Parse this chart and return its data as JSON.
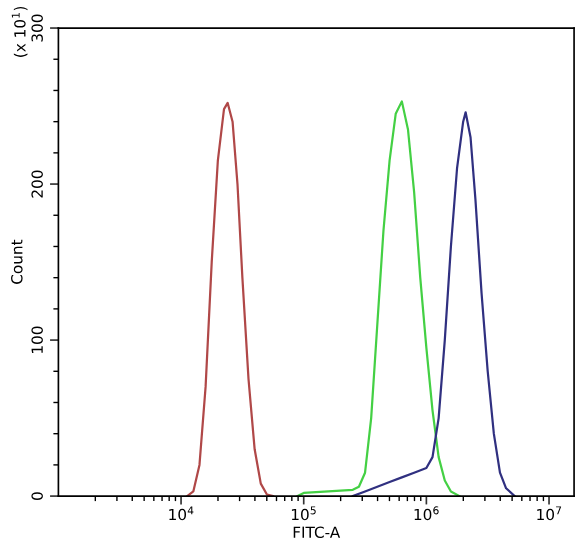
{
  "chart_data": {
    "type": "line",
    "xlabel": "FITC-A",
    "ylabel": "Count",
    "annotations": [
      "(x 10$^{1}$)"
    ],
    "log": "x",
    "grid": false,
    "marker": "none",
    "line_style": "solid",
    "xlim": [
      1000,
      16000000
    ],
    "xticks": [
      {
        "value": 10000,
        "label": "10$^{4}$"
      },
      {
        "value": 100000,
        "label": "10$^{5}$"
      },
      {
        "value": 1000000,
        "label": "10$^{6}$"
      },
      {
        "value": 10000000,
        "label": "10$^{7}$"
      }
    ],
    "ylim": [
      0,
      300
    ],
    "yticks": [
      0,
      100,
      200,
      300
    ],
    "series": [
      {
        "color": "#b04848",
        "x": [
          11220,
          12590,
          14130,
          15850,
          17780,
          19950,
          22390,
          23990,
          26300,
          28840,
          31620,
          35480,
          39810,
          44670,
          50120,
          56230
        ],
        "values": [
          0,
          3,
          20,
          70,
          150,
          215,
          248,
          252,
          240,
          200,
          140,
          75,
          30,
          8,
          1,
          0
        ]
      },
      {
        "color": "#44d044",
        "x": [
          89130,
          100000,
          158500,
          251200,
          281800,
          316200,
          354800,
          398100,
          446700,
          501200,
          562300,
          631000,
          707900,
          794300,
          891300,
          1000000,
          1122000,
          1259000,
          1413000,
          1585000,
          1862000
        ],
        "values": [
          0,
          2,
          3,
          4,
          6,
          15,
          50,
          110,
          170,
          215,
          245,
          253,
          235,
          195,
          140,
          95,
          55,
          25,
          10,
          3,
          0
        ]
      },
      {
        "color": "#303080",
        "x": [
          251200,
          316200,
          398100,
          501200,
          631000,
          794300,
          1000000,
          1122000,
          1259000,
          1413000,
          1585000,
          1778000,
          1995000,
          2089000,
          2291000,
          2512000,
          2818000,
          3162000,
          3548000,
          3981000,
          4467000,
          5248000
        ],
        "values": [
          0,
          3,
          6,
          9,
          12,
          15,
          18,
          25,
          50,
          100,
          160,
          210,
          240,
          246,
          230,
          190,
          130,
          80,
          40,
          15,
          5,
          0
        ]
      }
    ]
  }
}
